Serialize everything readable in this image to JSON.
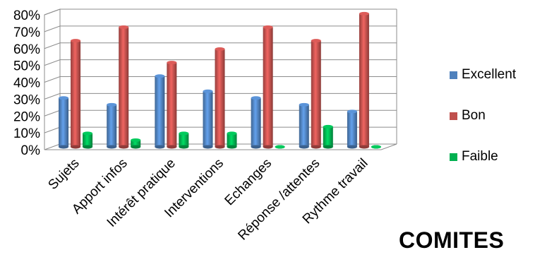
{
  "chart_data": {
    "type": "bar",
    "categories": [
      "Sujets",
      "Apport infos",
      "Intérêt pratique",
      "Interventions",
      "Echanges",
      "Réponse /attentes",
      "Rythme travail"
    ],
    "series": [
      {
        "name": "Excellent",
        "color": "#4F81BD",
        "values": [
          29,
          25,
          42,
          33,
          29,
          25,
          21
        ]
      },
      {
        "name": "Bon",
        "color": "#C0504D",
        "values": [
          63,
          71,
          50,
          58,
          71,
          63,
          79
        ]
      },
      {
        "name": "Faible",
        "color": "#00B050",
        "values": [
          8,
          4,
          8,
          8,
          0,
          12,
          0
        ]
      }
    ],
    "y_ticks": [
      "0%",
      "10%",
      "20%",
      "30%",
      "40%",
      "50%",
      "60%",
      "70%",
      "80%"
    ],
    "ylim": [
      0,
      80
    ],
    "grid": true,
    "legend_position": "right",
    "caption": "COMITES"
  }
}
